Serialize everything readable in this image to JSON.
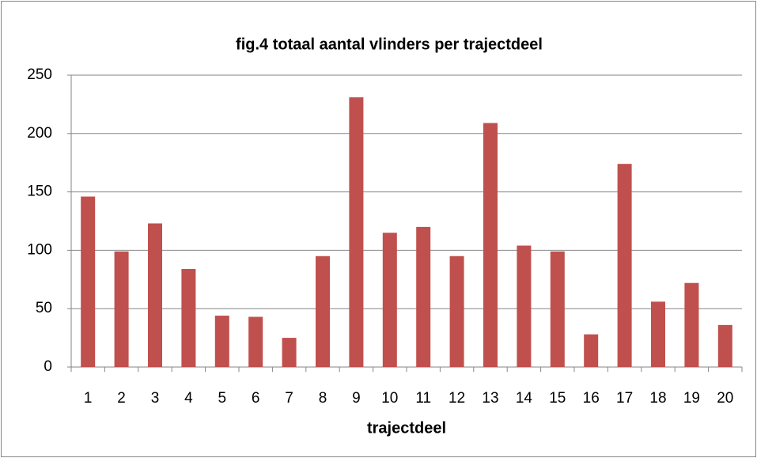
{
  "chart_data": {
    "type": "bar",
    "title": "fig.4  totaal aantal vlinders per trajectdeel",
    "x_label": "trajectdeel",
    "categories": [
      "1",
      "2",
      "3",
      "4",
      "5",
      "6",
      "7",
      "8",
      "9",
      "10",
      "11",
      "12",
      "13",
      "14",
      "15",
      "16",
      "17",
      "18",
      "19",
      "20"
    ],
    "values": [
      146,
      99,
      123,
      84,
      44,
      43,
      25,
      95,
      231,
      115,
      120,
      95,
      209,
      104,
      99,
      28,
      174,
      56,
      72,
      36
    ],
    "color": "#c0504d",
    "ylim": [
      0,
      250
    ],
    "yticks": [
      0,
      50,
      100,
      150,
      200,
      250
    ],
    "grid": true
  }
}
